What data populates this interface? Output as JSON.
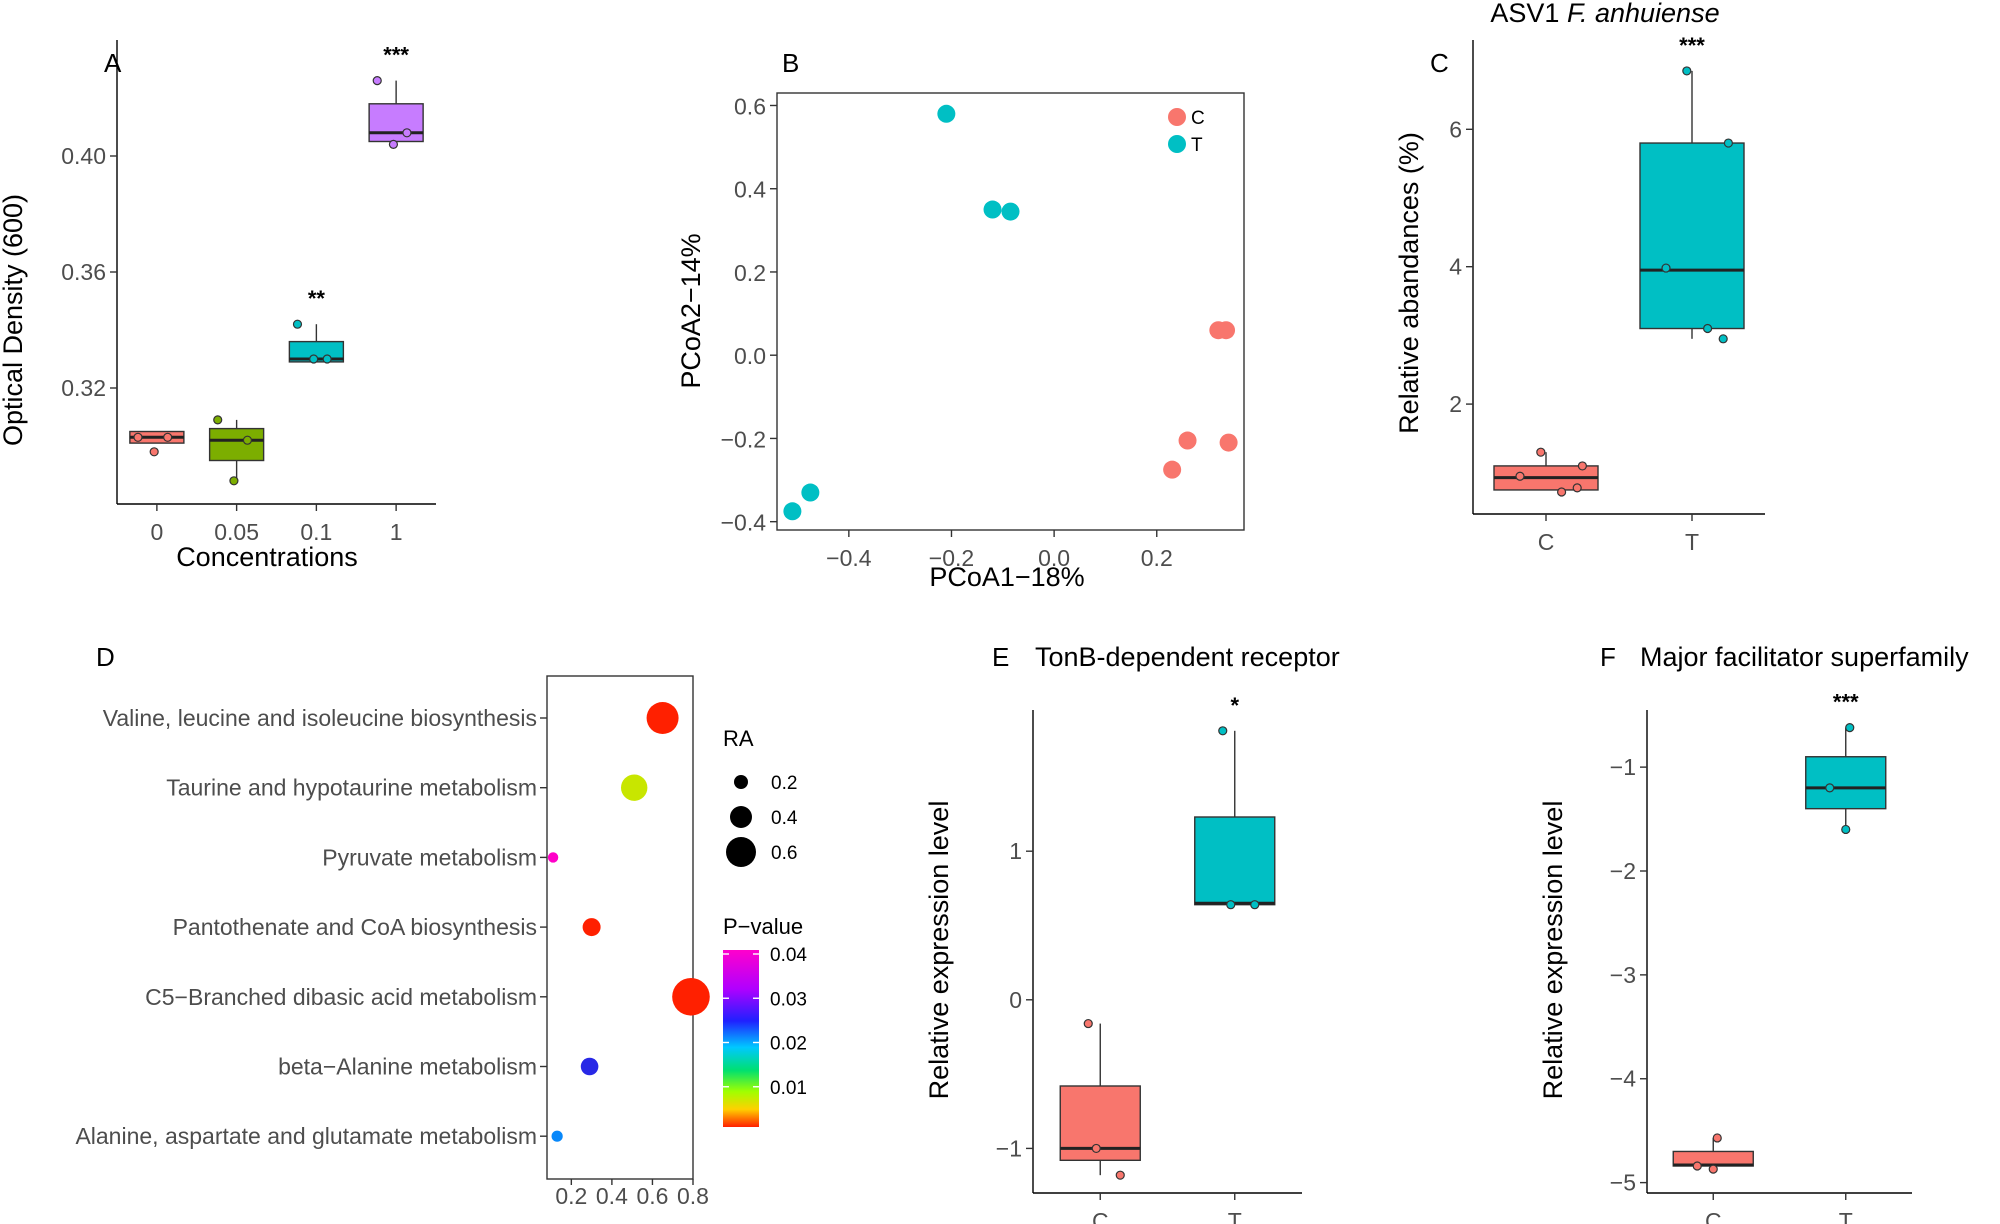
{
  "chart_data": [
    {
      "panel": "A",
      "type": "box",
      "title": "",
      "xlabel": "Concentrations",
      "ylabel": "Optical Density (600)",
      "categories": [
        "0",
        "0.05",
        "0.1",
        "1"
      ],
      "colors": [
        "#f8766d",
        "#7cae00",
        "#00bfc4",
        "#c77cff"
      ],
      "ylim": [
        0.28,
        0.44
      ],
      "yticks": [
        0.32,
        0.36,
        0.4
      ],
      "ytick_labels": [
        "0.32",
        "0.36",
        "0.40"
      ],
      "boxes": [
        {
          "q1": 0.301,
          "median": 0.303,
          "q3": 0.305,
          "wlo": 0.301,
          "whi": 0.305
        },
        {
          "q1": 0.295,
          "median": 0.302,
          "q3": 0.306,
          "wlo": 0.289,
          "whi": 0.309
        },
        {
          "q1": 0.329,
          "median": 0.33,
          "q3": 0.336,
          "wlo": 0.329,
          "whi": 0.342
        },
        {
          "q1": 0.405,
          "median": 0.408,
          "q3": 0.418,
          "wlo": 0.404,
          "whi": 0.426
        }
      ],
      "points": [
        [
          0.303,
          0.303,
          0.298
        ],
        [
          0.309,
          0.302,
          0.288
        ],
        [
          0.342,
          0.33,
          0.33
        ],
        [
          0.426,
          0.408,
          0.404
        ]
      ],
      "significance": [
        "",
        "",
        "**",
        "***"
      ]
    },
    {
      "panel": "B",
      "type": "scatter",
      "xlabel": "PCoA1−18%",
      "ylabel": "PCoA2−14%",
      "xlim": [
        -0.54,
        0.37
      ],
      "ylim": [
        -0.42,
        0.63
      ],
      "xticks": [
        -0.4,
        -0.2,
        0.0,
        0.2
      ],
      "xtick_labels": [
        "−0.4",
        "−0.2",
        "0.0",
        "0.2"
      ],
      "yticks": [
        -0.4,
        -0.2,
        0.0,
        0.2,
        0.4,
        0.6
      ],
      "ytick_labels": [
        "−0.4",
        "−0.2",
        "0.0",
        "0.2",
        "0.4",
        "0.6"
      ],
      "legend": "top-right",
      "series": [
        {
          "name": "C",
          "color": "#f8766d",
          "x": [
            0.32,
            0.335,
            0.26,
            0.34,
            0.23
          ],
          "y": [
            0.06,
            0.06,
            -0.205,
            -0.21,
            -0.275
          ]
        },
        {
          "name": "T",
          "color": "#00bfc4",
          "x": [
            -0.21,
            -0.12,
            -0.085,
            -0.475,
            -0.51
          ],
          "y": [
            0.58,
            0.35,
            0.345,
            -0.33,
            -0.375
          ]
        }
      ]
    },
    {
      "panel": "C",
      "type": "box",
      "title": "ASV1 ",
      "title_italic": "F. anhuiense",
      "xlabel": "",
      "ylabel": "Relative abandances (%)",
      "categories": [
        "C",
        "T"
      ],
      "colors": [
        "#f8766d",
        "#00bfc4"
      ],
      "ylim": [
        0.4,
        7.3
      ],
      "yticks": [
        2,
        4,
        6
      ],
      "ytick_labels": [
        "2",
        "4",
        "6"
      ],
      "boxes": [
        {
          "q1": 0.75,
          "median": 0.93,
          "q3": 1.1,
          "wlo": 0.75,
          "whi": 1.3
        },
        {
          "q1": 3.1,
          "median": 3.95,
          "q3": 5.8,
          "wlo": 2.95,
          "whi": 6.85
        }
      ],
      "points": [
        [
          1.3,
          1.1,
          0.95,
          0.72,
          0.78
        ],
        [
          6.85,
          5.8,
          3.98,
          3.1,
          2.95
        ]
      ],
      "significance": [
        "",
        "***"
      ]
    },
    {
      "panel": "D",
      "type": "bubble",
      "categories": [
        "Valine, leucine and isoleucine biosynthesis",
        "Taurine and hypotaurine metabolism",
        "Pyruvate metabolism",
        "Pantothenate and CoA biosynthesis",
        "C5−Branched dibasic acid metabolism",
        "beta−Alanine metabolism",
        "Alanine, aspartate and glutamate metabolism"
      ],
      "ra": [
        0.65,
        0.51,
        0.11,
        0.3,
        0.79,
        0.29,
        0.13
      ],
      "pvalue": [
        0.001,
        0.008,
        0.04,
        0.002,
        0.001,
        0.026,
        0.022
      ],
      "xlim": [
        0.08,
        0.8
      ],
      "xticks": [
        0.2,
        0.4,
        0.6,
        0.8
      ],
      "xtick_labels": [
        "0.2",
        "0.4",
        "0.6",
        "0.8"
      ],
      "size_legend_title": "RA",
      "size_legend": [
        0.2,
        0.4,
        0.6
      ],
      "size_legend_labels": [
        "0.2",
        "0.4",
        "0.6"
      ],
      "color_legend_title": "P−value",
      "color_legend": [
        0.04,
        0.03,
        0.02,
        0.01
      ],
      "color_legend_labels": [
        "0.04",
        "0.03",
        "0.02",
        "0.01"
      ]
    },
    {
      "panel": "E",
      "type": "box",
      "title": "TonB-dependent receptor",
      "xlabel": "",
      "ylabel": "Relative expression level",
      "categories": [
        "C",
        "T"
      ],
      "colors": [
        "#f8766d",
        "#00bfc4"
      ],
      "ylim": [
        -1.3,
        1.95
      ],
      "yticks": [
        -1,
        0,
        1
      ],
      "ytick_labels": [
        "−1",
        "0",
        "1"
      ],
      "boxes": [
        {
          "q1": -1.08,
          "median": -1.0,
          "q3": -0.58,
          "wlo": -1.18,
          "whi": -0.16
        },
        {
          "q1": 0.64,
          "median": 0.65,
          "q3": 1.23,
          "wlo": 0.64,
          "whi": 1.81
        }
      ],
      "points": [
        [
          -0.16,
          -1.0,
          -1.18
        ],
        [
          1.81,
          0.64,
          0.64
        ]
      ],
      "significance": [
        "",
        "*"
      ]
    },
    {
      "panel": "F",
      "type": "box",
      "title": "Major facilitator superfamily",
      "xlabel": "",
      "ylabel": "Relative expression level",
      "categories": [
        "C",
        "T"
      ],
      "colors": [
        "#f8766d",
        "#00bfc4"
      ],
      "ylim": [
        -5.1,
        -0.45
      ],
      "yticks": [
        -5,
        -4,
        -3,
        -2,
        -1
      ],
      "ytick_labels": [
        "−5",
        "−4",
        "−3",
        "−2",
        "−1"
      ],
      "boxes": [
        {
          "q1": -4.84,
          "median": -4.83,
          "q3": -4.7,
          "wlo": -4.84,
          "whi": -4.57
        },
        {
          "q1": -1.4,
          "median": -1.2,
          "q3": -0.9,
          "wlo": -1.6,
          "whi": -0.62
        }
      ],
      "points": [
        [
          -4.57,
          -4.84,
          -4.87
        ],
        [
          -0.62,
          -1.2,
          -1.6
        ]
      ],
      "significance": [
        "",
        "***"
      ]
    }
  ]
}
